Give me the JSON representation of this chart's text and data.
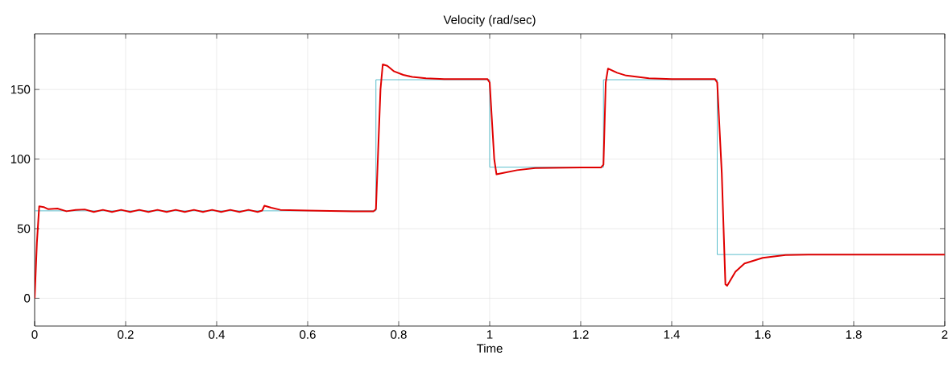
{
  "chart_data": {
    "type": "line",
    "title": "Velocity (rad/sec)",
    "xlabel": "Time",
    "xlim": [
      0,
      2
    ],
    "ylim": [
      -20,
      190
    ],
    "xticks": [
      0,
      0.2,
      0.4,
      0.6,
      0.8,
      1,
      1.2,
      1.4,
      1.6,
      1.8,
      2
    ],
    "yticks": [
      0,
      50,
      100,
      150
    ],
    "grid": true,
    "marker": "none",
    "line_style": "solid",
    "series": [
      {
        "type": "step",
        "color": "#4ab8c8",
        "x": [
          0,
          0.75,
          1,
          1.25,
          1.5,
          2
        ],
        "values": [
          62.8,
          157,
          94.2,
          157,
          31.4,
          31.4
        ]
      },
      {
        "color": "#e00000",
        "x": [
          0,
          0.005,
          0.01,
          0.02,
          0.03,
          0.05,
          0.07,
          0.09,
          0.11,
          0.13,
          0.15,
          0.17,
          0.19,
          0.21,
          0.23,
          0.25,
          0.27,
          0.29,
          0.31,
          0.33,
          0.35,
          0.37,
          0.39,
          0.41,
          0.43,
          0.45,
          0.47,
          0.49,
          0.5,
          0.505,
          0.52,
          0.54,
          0.6,
          0.7,
          0.745,
          0.75,
          0.76,
          0.765,
          0.775,
          0.79,
          0.81,
          0.83,
          0.86,
          0.9,
          0.95,
          0.995,
          1.0,
          1.01,
          1.015,
          1.03,
          1.06,
          1.1,
          1.2,
          1.245,
          1.25,
          1.255,
          1.26,
          1.28,
          1.3,
          1.35,
          1.4,
          1.495,
          1.5,
          1.51,
          1.518,
          1.522,
          1.54,
          1.56,
          1.6,
          1.65,
          1.7,
          2
        ],
        "values": [
          0,
          40,
          66,
          65.5,
          64,
          64.5,
          62.5,
          63.5,
          63.8,
          62,
          63.5,
          62,
          63.5,
          62,
          63.5,
          62,
          63.5,
          62,
          63.5,
          62,
          63.5,
          62,
          63.5,
          62,
          63.5,
          62,
          63.5,
          62,
          63,
          66.5,
          65,
          63.5,
          63,
          62.5,
          62.5,
          64,
          150,
          168,
          167,
          163,
          160.5,
          159,
          158,
          157.5,
          157.5,
          157.5,
          155,
          100,
          89,
          90,
          92,
          93.5,
          94,
          94,
          96,
          155,
          165,
          162,
          160,
          158,
          157.5,
          157.5,
          155,
          90,
          10,
          9,
          19,
          25,
          29,
          31,
          31.4,
          31.4
        ]
      }
    ]
  }
}
